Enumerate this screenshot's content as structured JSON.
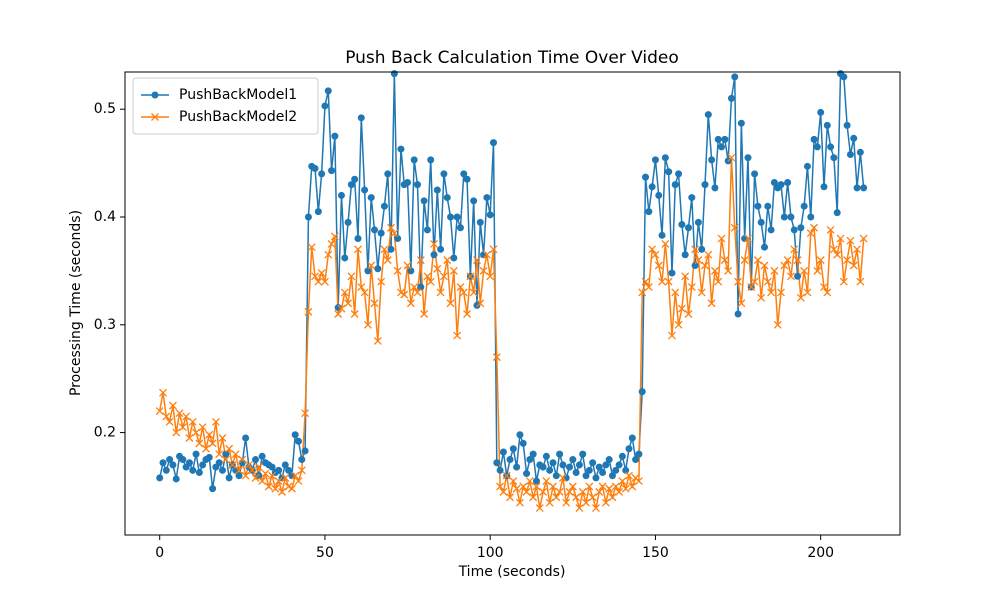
{
  "chart_data": {
    "type": "line",
    "title": "Push Back Calculation Time Over Video",
    "x_label": "Time (seconds)",
    "y_label": "Processing Time (seconds)",
    "x": [
      0,
      1,
      2,
      3,
      4,
      5,
      6,
      7,
      8,
      9,
      10,
      11,
      12,
      13,
      14,
      15,
      16,
      17,
      18,
      19,
      20,
      21,
      22,
      23,
      24,
      25,
      26,
      27,
      28,
      29,
      30,
      31,
      32,
      33,
      34,
      35,
      36,
      37,
      38,
      39,
      40,
      41,
      42,
      43,
      44,
      45,
      46,
      47,
      48,
      49,
      50,
      51,
      52,
      53,
      54,
      55,
      56,
      57,
      58,
      59,
      60,
      61,
      62,
      63,
      64,
      65,
      66,
      67,
      68,
      69,
      70,
      71,
      72,
      73,
      74,
      75,
      76,
      77,
      78,
      79,
      80,
      81,
      82,
      83,
      84,
      85,
      86,
      87,
      88,
      89,
      90,
      91,
      92,
      93,
      94,
      95,
      96,
      97,
      98,
      99,
      100,
      101,
      102,
      103,
      104,
      105,
      106,
      107,
      108,
      109,
      110,
      111,
      112,
      113,
      114,
      115,
      116,
      117,
      118,
      119,
      120,
      121,
      122,
      123,
      124,
      125,
      126,
      127,
      128,
      129,
      130,
      131,
      132,
      133,
      134,
      135,
      136,
      137,
      138,
      139,
      140,
      141,
      142,
      143,
      144,
      145,
      146,
      147,
      148,
      149,
      150,
      151,
      152,
      153,
      154,
      155,
      156,
      157,
      158,
      159,
      160,
      161,
      162,
      163,
      164,
      165,
      166,
      167,
      168,
      169,
      170,
      171,
      172,
      173,
      174,
      175,
      176,
      177,
      178,
      179,
      180,
      181,
      182,
      183,
      184,
      185,
      186,
      187,
      188,
      189,
      190,
      191,
      192,
      193,
      194,
      195,
      196,
      197,
      198,
      199,
      200,
      201,
      202,
      203,
      204,
      205,
      206,
      207,
      208,
      209,
      210,
      211,
      212,
      213
    ],
    "series": [
      {
        "name": "PushBackModel1",
        "color": "#1f77b4",
        "marker": "circle",
        "values": [
          0.158,
          0.172,
          0.165,
          0.175,
          0.17,
          0.157,
          0.178,
          0.175,
          0.168,
          0.172,
          0.165,
          0.18,
          0.163,
          0.17,
          0.175,
          0.177,
          0.148,
          0.168,
          0.172,
          0.165,
          0.18,
          0.158,
          0.17,
          0.165,
          0.16,
          0.172,
          0.195,
          0.168,
          0.165,
          0.175,
          0.16,
          0.178,
          0.172,
          0.17,
          0.168,
          0.163,
          0.165,
          0.158,
          0.17,
          0.165,
          0.16,
          0.198,
          0.192,
          0.175,
          0.183,
          0.4,
          0.447,
          0.445,
          0.405,
          0.44,
          0.503,
          0.517,
          0.443,
          0.475,
          0.316,
          0.42,
          0.362,
          0.395,
          0.43,
          0.435,
          0.38,
          0.492,
          0.425,
          0.35,
          0.418,
          0.388,
          0.352,
          0.385,
          0.41,
          0.44,
          0.37,
          0.533,
          0.38,
          0.463,
          0.43,
          0.432,
          0.35,
          0.453,
          0.43,
          0.335,
          0.415,
          0.388,
          0.453,
          0.365,
          0.425,
          0.37,
          0.44,
          0.418,
          0.4,
          0.362,
          0.4,
          0.39,
          0.44,
          0.435,
          0.345,
          0.415,
          0.318,
          0.395,
          0.365,
          0.418,
          0.402,
          0.469,
          0.172,
          0.165,
          0.182,
          0.16,
          0.175,
          0.185,
          0.168,
          0.198,
          0.19,
          0.162,
          0.175,
          0.18,
          0.155,
          0.17,
          0.168,
          0.178,
          0.165,
          0.172,
          0.16,
          0.18,
          0.17,
          0.158,
          0.168,
          0.175,
          0.163,
          0.17,
          0.18,
          0.16,
          0.165,
          0.172,
          0.158,
          0.168,
          0.163,
          0.17,
          0.175,
          0.16,
          0.165,
          0.17,
          0.178,
          0.165,
          0.185,
          0.195,
          0.175,
          0.18,
          0.238,
          0.437,
          0.405,
          0.428,
          0.453,
          0.42,
          0.383,
          0.455,
          0.442,
          0.348,
          0.43,
          0.44,
          0.393,
          0.365,
          0.39,
          0.418,
          0.355,
          0.395,
          0.37,
          0.43,
          0.495,
          0.453,
          0.427,
          0.472,
          0.465,
          0.472,
          0.452,
          0.51,
          0.53,
          0.31,
          0.487,
          0.38,
          0.455,
          0.335,
          0.44,
          0.41,
          0.395,
          0.372,
          0.41,
          0.388,
          0.432,
          0.427,
          0.43,
          0.4,
          0.432,
          0.4,
          0.388,
          0.345,
          0.39,
          0.41,
          0.447,
          0.4,
          0.472,
          0.465,
          0.497,
          0.428,
          0.485,
          0.465,
          0.455,
          0.404,
          0.533,
          0.53,
          0.485,
          0.458,
          0.473,
          0.427,
          0.46,
          0.427
        ]
      },
      {
        "name": "PushBackModel2",
        "color": "#ff7f0e",
        "marker": "x",
        "values": [
          0.22,
          0.237,
          0.215,
          0.21,
          0.225,
          0.2,
          0.218,
          0.205,
          0.215,
          0.195,
          0.21,
          0.2,
          0.19,
          0.205,
          0.185,
          0.198,
          0.19,
          0.21,
          0.18,
          0.195,
          0.175,
          0.185,
          0.17,
          0.18,
          0.165,
          0.175,
          0.16,
          0.17,
          0.165,
          0.158,
          0.168,
          0.155,
          0.162,
          0.15,
          0.16,
          0.148,
          0.155,
          0.145,
          0.158,
          0.15,
          0.148,
          0.16,
          0.155,
          0.165,
          0.218,
          0.312,
          0.372,
          0.345,
          0.34,
          0.348,
          0.34,
          0.365,
          0.375,
          0.382,
          0.31,
          0.315,
          0.33,
          0.32,
          0.345,
          0.31,
          0.37,
          0.335,
          0.33,
          0.3,
          0.355,
          0.32,
          0.285,
          0.34,
          0.37,
          0.36,
          0.39,
          0.385,
          0.35,
          0.33,
          0.328,
          0.355,
          0.32,
          0.335,
          0.33,
          0.36,
          0.31,
          0.345,
          0.34,
          0.375,
          0.352,
          0.33,
          0.345,
          0.36,
          0.32,
          0.35,
          0.29,
          0.335,
          0.33,
          0.31,
          0.345,
          0.33,
          0.36,
          0.32,
          0.35,
          0.365,
          0.345,
          0.37,
          0.27,
          0.15,
          0.145,
          0.16,
          0.14,
          0.155,
          0.148,
          0.135,
          0.15,
          0.145,
          0.155,
          0.14,
          0.15,
          0.13,
          0.145,
          0.155,
          0.135,
          0.15,
          0.14,
          0.145,
          0.158,
          0.135,
          0.145,
          0.15,
          0.14,
          0.13,
          0.145,
          0.135,
          0.15,
          0.14,
          0.13,
          0.145,
          0.15,
          0.135,
          0.148,
          0.14,
          0.15,
          0.145,
          0.155,
          0.148,
          0.16,
          0.15,
          0.158,
          0.155,
          0.33,
          0.34,
          0.335,
          0.37,
          0.365,
          0.355,
          0.34,
          0.375,
          0.34,
          0.29,
          0.33,
          0.3,
          0.315,
          0.345,
          0.31,
          0.335,
          0.37,
          0.36,
          0.33,
          0.355,
          0.365,
          0.32,
          0.35,
          0.34,
          0.38,
          0.36,
          0.35,
          0.455,
          0.39,
          0.34,
          0.32,
          0.36,
          0.38,
          0.335,
          0.34,
          0.36,
          0.325,
          0.355,
          0.34,
          0.33,
          0.35,
          0.3,
          0.33,
          0.355,
          0.36,
          0.345,
          0.37,
          0.36,
          0.325,
          0.35,
          0.33,
          0.385,
          0.39,
          0.35,
          0.36,
          0.335,
          0.33,
          0.388,
          0.37,
          0.365,
          0.38,
          0.34,
          0.36,
          0.378,
          0.355,
          0.37,
          0.34,
          0.38
        ]
      }
    ],
    "xlim": [
      -10.5,
      224
    ],
    "xticks": [
      0,
      50,
      100,
      150,
      200
    ],
    "ylim": [
      0.105,
      0.5345
    ],
    "yticks": [
      0.2,
      0.3,
      0.4,
      0.5
    ],
    "legend": "upper left"
  }
}
